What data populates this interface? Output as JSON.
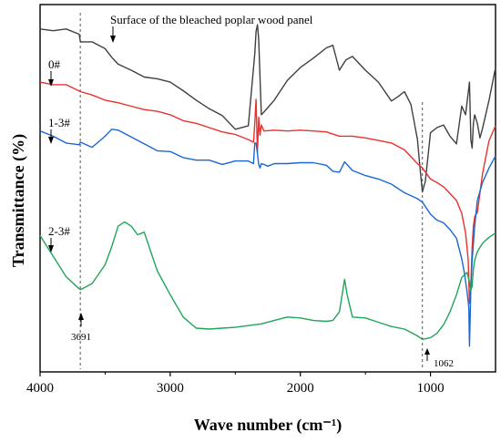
{
  "chart_data": {
    "type": "line",
    "xlabel": "Wave number (cm⁻¹)",
    "ylabel": "Transmittance (%)",
    "xlim": [
      4000,
      500
    ],
    "x_reversed": true,
    "x_ticks": [
      4000,
      3000,
      2000,
      1000
    ],
    "y_ticks_shown": false,
    "grid": false,
    "legend": "none",
    "series": [
      {
        "name": "Surface of the bleached poplar wood panel",
        "color": "#404040",
        "x": [
          4000,
          3900,
          3800,
          3700,
          3690,
          3600,
          3500,
          3450,
          3400,
          3300,
          3200,
          3100,
          3000,
          2900,
          2800,
          2700,
          2600,
          2500,
          2400,
          2350,
          2340,
          2330,
          2320,
          2310,
          2300,
          2280,
          2200,
          2100,
          2000,
          1900,
          1800,
          1750,
          1700,
          1650,
          1600,
          1500,
          1400,
          1300,
          1250,
          1200,
          1150,
          1100,
          1080,
          1062,
          1040,
          1000,
          950,
          900,
          850,
          800,
          760,
          730,
          700,
          690,
          680,
          670,
          660,
          640,
          620,
          600,
          550,
          500
        ],
        "y": [
          0.0,
          0.2,
          0.0,
          0.6,
          1.5,
          1.5,
          2.3,
          3.3,
          4.1,
          4.8,
          5.6,
          5.8,
          6.2,
          7.2,
          8.3,
          9.3,
          10.1,
          11.7,
          11.3,
          2.9,
          0.3,
          -0.5,
          1.2,
          5.5,
          10.0,
          9.7,
          8.3,
          6.0,
          4.5,
          3.4,
          2.2,
          1.9,
          4.8,
          3.6,
          3.2,
          4.8,
          6.2,
          8.4,
          7.9,
          7.3,
          8.8,
          12.9,
          16.2,
          19.0,
          17.8,
          12.1,
          11.5,
          11.2,
          12.5,
          13.4,
          9.0,
          10.0,
          6.2,
          12.9,
          13.9,
          11.0,
          10.0,
          11.0,
          12.7,
          11.6,
          8.3,
          4.5
        ]
      },
      {
        "name": "0#",
        "color": "#e8312e",
        "x": [
          4000,
          3900,
          3800,
          3690,
          3600,
          3500,
          3400,
          3300,
          3200,
          3100,
          3000,
          2900,
          2800,
          2700,
          2600,
          2500,
          2400,
          2360,
          2350,
          2340,
          2330,
          2320,
          2310,
          2300,
          2280,
          2200,
          2100,
          2000,
          1900,
          1800,
          1700,
          1600,
          1500,
          1400,
          1300,
          1200,
          1100,
          1062,
          1000,
          950,
          900,
          850,
          800,
          760,
          730,
          710,
          700,
          690,
          680,
          670,
          660,
          640,
          600,
          550,
          500
        ],
        "y": [
          6.2,
          6.5,
          6.5,
          7.3,
          7.7,
          8.3,
          8.6,
          9.0,
          9.4,
          9.6,
          10.0,
          10.7,
          11.0,
          11.5,
          12.0,
          12.3,
          12.9,
          13.2,
          11.0,
          8.2,
          14.4,
          10.3,
          12.4,
          11.2,
          11.9,
          11.8,
          11.9,
          11.8,
          11.9,
          12.0,
          12.5,
          12.5,
          12.7,
          13.0,
          13.3,
          14.1,
          15.7,
          16.2,
          17.5,
          17.9,
          18.4,
          19.2,
          20.0,
          21.5,
          23.8,
          26.9,
          32.0,
          30.0,
          25.5,
          23.0,
          21.9,
          21.4,
          16.9,
          13.0,
          11.3
        ]
      },
      {
        "name": "1-3#",
        "color": "#1c66d2",
        "x": [
          4000,
          3900,
          3800,
          3700,
          3690,
          3600,
          3500,
          3450,
          3400,
          3300,
          3200,
          3100,
          3000,
          2900,
          2800,
          2700,
          2600,
          2500,
          2400,
          2360,
          2350,
          2340,
          2330,
          2320,
          2310,
          2300,
          2280,
          2250,
          2200,
          2100,
          2000,
          1900,
          1800,
          1750,
          1700,
          1660,
          1600,
          1500,
          1400,
          1300,
          1200,
          1100,
          1062,
          1000,
          950,
          900,
          850,
          800,
          760,
          740,
          720,
          705,
          700,
          695,
          690,
          680,
          670,
          660,
          640,
          600,
          550,
          500
        ],
        "y": [
          11.9,
          12.5,
          13.3,
          13.5,
          13.2,
          13.8,
          12.5,
          11.7,
          11.8,
          12.6,
          13.4,
          14.2,
          14.3,
          15.0,
          15.3,
          15.3,
          15.8,
          15.4,
          15.4,
          15.7,
          13.3,
          13.3,
          14.5,
          15.8,
          16.2,
          15.7,
          15.8,
          16.0,
          15.7,
          15.7,
          15.6,
          15.6,
          15.9,
          16.6,
          16.7,
          15.5,
          16.5,
          17.1,
          17.5,
          18.1,
          19.1,
          19.8,
          20.2,
          21.6,
          22.3,
          22.6,
          23.4,
          24.4,
          26.8,
          28.4,
          30.5,
          32.5,
          37.0,
          34.0,
          30.0,
          27.0,
          25.0,
          23.0,
          20.0,
          17.9,
          16.2,
          14.8
        ]
      },
      {
        "name": "2-3#",
        "color": "#1fa658",
        "x": [
          4000,
          3900,
          3800,
          3700,
          3690,
          3600,
          3500,
          3450,
          3400,
          3350,
          3300,
          3250,
          3200,
          3100,
          3000,
          2900,
          2800,
          2700,
          2600,
          2500,
          2400,
          2300,
          2200,
          2100,
          2000,
          1900,
          1800,
          1750,
          1700,
          1660,
          1640,
          1600,
          1500,
          1400,
          1300,
          1200,
          1100,
          1062,
          1000,
          950,
          900,
          850,
          800,
          760,
          720,
          700,
          690,
          680,
          670,
          660,
          640,
          600,
          550,
          500
        ],
        "y": [
          24.1,
          26.5,
          28.9,
          30.3,
          30.4,
          29.7,
          27.5,
          25.4,
          23.0,
          22.5,
          23.0,
          24.0,
          23.7,
          28.2,
          31.0,
          33.6,
          34.9,
          35.0,
          34.9,
          34.8,
          34.6,
          34.4,
          34.0,
          33.6,
          33.7,
          34.0,
          34.1,
          34.0,
          33.0,
          29.2,
          31.0,
          33.6,
          33.7,
          34.2,
          34.7,
          35.0,
          35.8,
          36.2,
          36.0,
          35.5,
          34.5,
          33.0,
          31.0,
          29.0,
          28.4,
          29.5,
          30.5,
          30.0,
          28.0,
          27.0,
          26.0,
          25.0,
          24.3,
          23.8
        ]
      }
    ],
    "ylim": [
      40,
      -2
    ],
    "reference_lines": [
      3691,
      1062
    ],
    "annotations": {
      "top_label": "Surface of the bleached poplar wood panel",
      "label_0": "0#",
      "label_13": "1-3#",
      "label_23": "2-3#",
      "peak_3691": "3691",
      "peak_1062": "1062"
    }
  }
}
